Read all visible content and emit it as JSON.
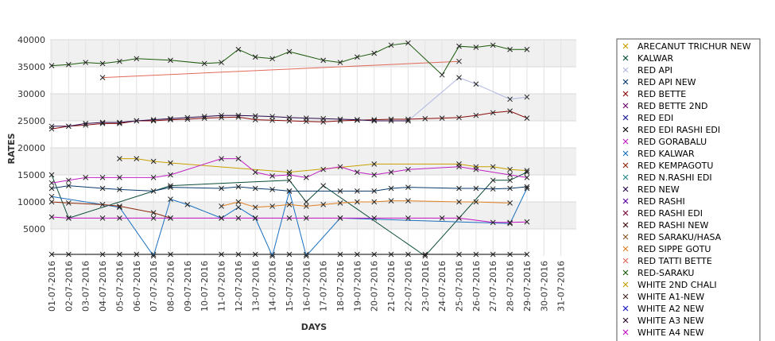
{
  "chart_data": {
    "type": "line",
    "title": "",
    "xlabel": "DAYS",
    "ylabel": "RATES",
    "ylim": [
      0,
      40000
    ],
    "yticks": [
      5000,
      10000,
      15000,
      20000,
      25000,
      30000,
      35000,
      40000
    ],
    "grid": true,
    "legend_placement": "right",
    "categories": [
      "01-07-2016",
      "02-07-2016",
      "03-07-2016",
      "04-07-2016",
      "05-07-2016",
      "06-07-2016",
      "07-07-2016",
      "08-07-2016",
      "09-07-2016",
      "10-07-2016",
      "11-07-2016",
      "12-07-2016",
      "13-07-2016",
      "14-07-2016",
      "15-07-2016",
      "16-07-2016",
      "17-07-2016",
      "18-07-2016",
      "19-07-2016",
      "20-07-2016",
      "21-07-2016",
      "22-07-2016",
      "23-07-2016",
      "24-07-2016",
      "25-07-2016",
      "26-07-2016",
      "27-07-2016",
      "28-07-2016",
      "29-07-2016",
      "30-07-2016",
      "31-07-2016"
    ],
    "series": [
      {
        "name": "ARECANUT TRICHUR NEW",
        "color": "#c8a000",
        "values": [
          null,
          null,
          null,
          null,
          18000,
          18000,
          17500,
          17200,
          null,
          null,
          null,
          null,
          null,
          null,
          15500,
          null,
          null,
          null,
          null,
          17000,
          null,
          null,
          null,
          null,
          17000,
          16500,
          16500,
          16000,
          15800,
          null,
          null
        ]
      },
      {
        "name": "KALWAR",
        "color": "#0a4a3a",
        "values": [
          15000,
          7000,
          null,
          null,
          null,
          null,
          null,
          13000,
          null,
          null,
          null,
          null,
          null,
          null,
          14000,
          10000,
          13000,
          null,
          null,
          null,
          null,
          null,
          0,
          null,
          7000,
          null,
          14000,
          14000,
          15500,
          null,
          null
        ]
      },
      {
        "name": "RED API",
        "color": "#b0b8e0",
        "values": [
          null,
          null,
          null,
          null,
          null,
          null,
          null,
          null,
          null,
          null,
          null,
          null,
          null,
          null,
          null,
          null,
          null,
          null,
          null,
          null,
          null,
          25000,
          null,
          null,
          33000,
          31800,
          null,
          29000,
          29400,
          null,
          null
        ]
      },
      {
        "name": "RED API NEW",
        "color": "#0a3a6a",
        "values": [
          12500,
          13000,
          null,
          12500,
          12300,
          null,
          12000,
          12700,
          null,
          null,
          12500,
          12800,
          12500,
          12300,
          12000,
          null,
          null,
          12000,
          12000,
          12000,
          12500,
          12700,
          null,
          null,
          12500,
          12500,
          12400,
          12500,
          12800,
          null,
          null
        ]
      },
      {
        "name": "RED BETTE",
        "color": "#8a0a0a",
        "values": [
          23500,
          24000,
          24200,
          24500,
          24500,
          25000,
          25000,
          25200,
          25300,
          25500,
          25600,
          25700,
          25200,
          25100,
          25000,
          24900,
          24800,
          25000,
          25100,
          25200,
          25300,
          25300,
          25400,
          25500,
          25600,
          26000,
          26500,
          26800,
          25500,
          null,
          null
        ]
      },
      {
        "name": "RED BETTE 2ND",
        "color": "#6a006a",
        "values": [
          null,
          null,
          null,
          null,
          null,
          null,
          null,
          null,
          null,
          null,
          null,
          null,
          null,
          null,
          null,
          null,
          null,
          null,
          null,
          null,
          null,
          null,
          null,
          null,
          null,
          null,
          null,
          null,
          null,
          null,
          null
        ]
      },
      {
        "name": "RED EDI",
        "color": "#1a1a9a",
        "values": [
          null,
          null,
          null,
          null,
          null,
          null,
          null,
          null,
          null,
          null,
          null,
          null,
          null,
          null,
          null,
          null,
          null,
          null,
          null,
          null,
          null,
          null,
          null,
          null,
          null,
          null,
          null,
          null,
          null,
          null,
          null
        ]
      },
      {
        "name": "RED EDI RASHI EDI",
        "color": "#000000",
        "values": [
          300,
          300,
          null,
          300,
          300,
          300,
          300,
          300,
          null,
          null,
          300,
          300,
          300,
          300,
          300,
          300,
          null,
          300,
          300,
          300,
          300,
          300,
          300,
          null,
          300,
          300,
          300,
          300,
          300,
          null,
          null
        ]
      },
      {
        "name": "RED GORABALU",
        "color": "#c020c0",
        "values": [
          13500,
          14000,
          14500,
          14500,
          14500,
          null,
          14500,
          15000,
          null,
          null,
          18000,
          18000,
          15500,
          14800,
          15000,
          14500,
          16000,
          16500,
          15500,
          15000,
          15500,
          16000,
          null,
          null,
          16500,
          16000,
          null,
          15000,
          14500,
          null,
          null
        ]
      },
      {
        "name": "RED KALWAR",
        "color": "#1a70c0",
        "values": [
          11000,
          null,
          null,
          null,
          9000,
          null,
          0,
          10500,
          9500,
          null,
          7000,
          9000,
          7000,
          0,
          12000,
          0,
          null,
          7000,
          null,
          null,
          null,
          null,
          null,
          null,
          null,
          null,
          null,
          6000,
          12500,
          null,
          null
        ]
      },
      {
        "name": "RED KEMPAGOTU",
        "color": "#8a2a0a",
        "values": [
          10000,
          9800,
          null,
          9500,
          9200,
          null,
          8000,
          7000,
          null,
          null,
          null,
          null,
          null,
          null,
          null,
          null,
          null,
          null,
          null,
          null,
          null,
          null,
          null,
          null,
          null,
          null,
          null,
          null,
          null,
          null,
          null
        ]
      },
      {
        "name": "RED N.RASHI EDI",
        "color": "#2a8a8a",
        "values": [
          null,
          null,
          null,
          null,
          null,
          null,
          null,
          null,
          null,
          null,
          null,
          null,
          null,
          null,
          null,
          null,
          null,
          null,
          null,
          null,
          null,
          null,
          null,
          null,
          null,
          null,
          null,
          null,
          null,
          null,
          null
        ]
      },
      {
        "name": "RED NEW",
        "color": "#2a0a4a",
        "values": [
          24000,
          24000,
          24500,
          24700,
          24700,
          25000,
          25200,
          25400,
          25600,
          25800,
          26000,
          26000,
          25900,
          25800,
          25600,
          25500,
          25400,
          25300,
          25200,
          25000,
          25000,
          25000,
          null,
          null,
          null,
          null,
          null,
          null,
          null,
          null,
          null
        ]
      },
      {
        "name": "RED RASHI",
        "color": "#5a0aa0",
        "values": [
          null,
          null,
          null,
          null,
          null,
          null,
          null,
          null,
          null,
          null,
          null,
          null,
          null,
          null,
          null,
          null,
          null,
          null,
          null,
          null,
          null,
          null,
          null,
          null,
          null,
          null,
          null,
          null,
          null,
          null,
          null
        ]
      },
      {
        "name": "RED RASHI EDI",
        "color": "#7a0a3a",
        "values": [
          null,
          null,
          null,
          null,
          null,
          null,
          null,
          null,
          null,
          null,
          null,
          null,
          null,
          null,
          null,
          null,
          null,
          null,
          null,
          null,
          null,
          null,
          null,
          null,
          null,
          null,
          null,
          null,
          null,
          null,
          null
        ]
      },
      {
        "name": "RED RASHI NEW",
        "color": "#3a0a0a",
        "values": [
          null,
          null,
          null,
          null,
          null,
          null,
          null,
          null,
          null,
          null,
          null,
          null,
          null,
          null,
          null,
          null,
          null,
          null,
          null,
          null,
          null,
          null,
          null,
          null,
          null,
          null,
          null,
          null,
          null,
          null,
          null
        ]
      },
      {
        "name": "RED SARAKU/HASA",
        "color": "#8a5a2a",
        "values": [
          null,
          null,
          null,
          null,
          null,
          null,
          null,
          null,
          null,
          null,
          null,
          null,
          null,
          null,
          null,
          null,
          null,
          null,
          null,
          null,
          null,
          null,
          null,
          null,
          null,
          null,
          null,
          null,
          null,
          null,
          null
        ]
      },
      {
        "name": "RED SIPPE GOTU",
        "color": "#e08020",
        "values": [
          null,
          null,
          null,
          null,
          null,
          null,
          null,
          null,
          null,
          null,
          9200,
          10000,
          9000,
          9200,
          9500,
          9200,
          9500,
          9800,
          10000,
          10000,
          10200,
          10200,
          null,
          null,
          10000,
          10000,
          null,
          9800,
          null,
          null,
          null
        ]
      },
      {
        "name": "RED TATTI BETTE",
        "color": "#e06a5a",
        "values": [
          null,
          null,
          null,
          33000,
          null,
          null,
          null,
          null,
          null,
          null,
          null,
          null,
          null,
          null,
          null,
          null,
          null,
          null,
          null,
          null,
          null,
          null,
          null,
          null,
          36000,
          null,
          null,
          null,
          null,
          null,
          null
        ]
      },
      {
        "name": "RED-SARAKU",
        "color": "#1a5a0a",
        "values": [
          35200,
          35400,
          35800,
          35600,
          36000,
          36500,
          null,
          36200,
          null,
          35600,
          35800,
          38200,
          36800,
          36500,
          37800,
          null,
          36200,
          35800,
          36800,
          37500,
          39000,
          39400,
          null,
          33500,
          38800,
          38600,
          39000,
          38200,
          38200,
          null,
          null
        ]
      },
      {
        "name": "WHITE 2ND CHALI",
        "color": "#c0a000",
        "values": [
          null,
          null,
          null,
          null,
          null,
          null,
          null,
          null,
          null,
          null,
          null,
          null,
          null,
          null,
          null,
          null,
          null,
          null,
          null,
          null,
          null,
          null,
          null,
          null,
          null,
          null,
          null,
          null,
          null,
          null,
          null
        ]
      },
      {
        "name": "WHITE A1-NEW",
        "color": "#4a2a2a",
        "values": [
          null,
          null,
          null,
          null,
          null,
          null,
          null,
          null,
          null,
          null,
          null,
          null,
          null,
          null,
          null,
          null,
          null,
          null,
          null,
          null,
          null,
          null,
          null,
          null,
          null,
          null,
          null,
          null,
          null,
          null,
          null
        ]
      },
      {
        "name": "WHITE A2 NEW",
        "color": "#1a1ac0",
        "values": [
          null,
          null,
          null,
          null,
          null,
          null,
          null,
          null,
          null,
          null,
          null,
          null,
          null,
          null,
          null,
          null,
          null,
          null,
          null,
          null,
          null,
          null,
          null,
          null,
          null,
          null,
          null,
          null,
          null,
          null,
          null
        ]
      },
      {
        "name": "WHITE A3 NEW",
        "color": "#2a0a2a",
        "values": [
          null,
          null,
          null,
          null,
          null,
          null,
          null,
          null,
          null,
          null,
          null,
          null,
          null,
          null,
          null,
          null,
          null,
          null,
          null,
          null,
          null,
          null,
          null,
          null,
          null,
          null,
          null,
          null,
          null,
          null,
          null
        ]
      },
      {
        "name": "WHITE A4 NEW",
        "color": "#c010c0",
        "values": [
          7200,
          7000,
          null,
          7000,
          7000,
          null,
          7000,
          7000,
          null,
          null,
          7000,
          7000,
          7000,
          null,
          7000,
          7000,
          null,
          7000,
          null,
          7000,
          null,
          7000,
          null,
          7000,
          7000,
          null,
          6200,
          6200,
          6300,
          null,
          null
        ]
      }
    ]
  }
}
